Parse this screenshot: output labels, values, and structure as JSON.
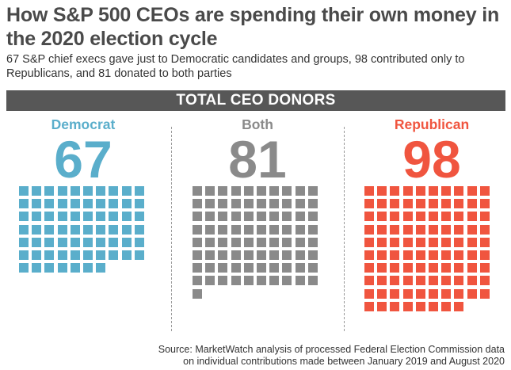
{
  "header": {
    "title": "How S&P 500 CEOs are spending their own money in the 2020 election cycle",
    "subtitle": "67 S&P chief execs gave just to Democratic candidates and groups, 98 contributed only to Republicans, and 81 donated to both parties"
  },
  "banner": {
    "label": "TOTAL CEO DONORS"
  },
  "source": {
    "line1": "Source: MarketWatch analysis of processed Federal Election Commission data",
    "line2": "on individual contributions made between January 2019 and August 2020"
  },
  "chart_data": {
    "type": "waffle",
    "title": "TOTAL CEO DONORS",
    "units_per_cell": 1,
    "cells_per_row": 10,
    "series": [
      {
        "name": "Democrat",
        "value": 67,
        "value_label": "67",
        "color": "#5aaecb"
      },
      {
        "name": "Both",
        "value": 81,
        "value_label": "81",
        "color": "#8a8a8a"
      },
      {
        "name": "Republican",
        "value": 98,
        "value_label": "98",
        "color": "#f0553f"
      }
    ]
  }
}
